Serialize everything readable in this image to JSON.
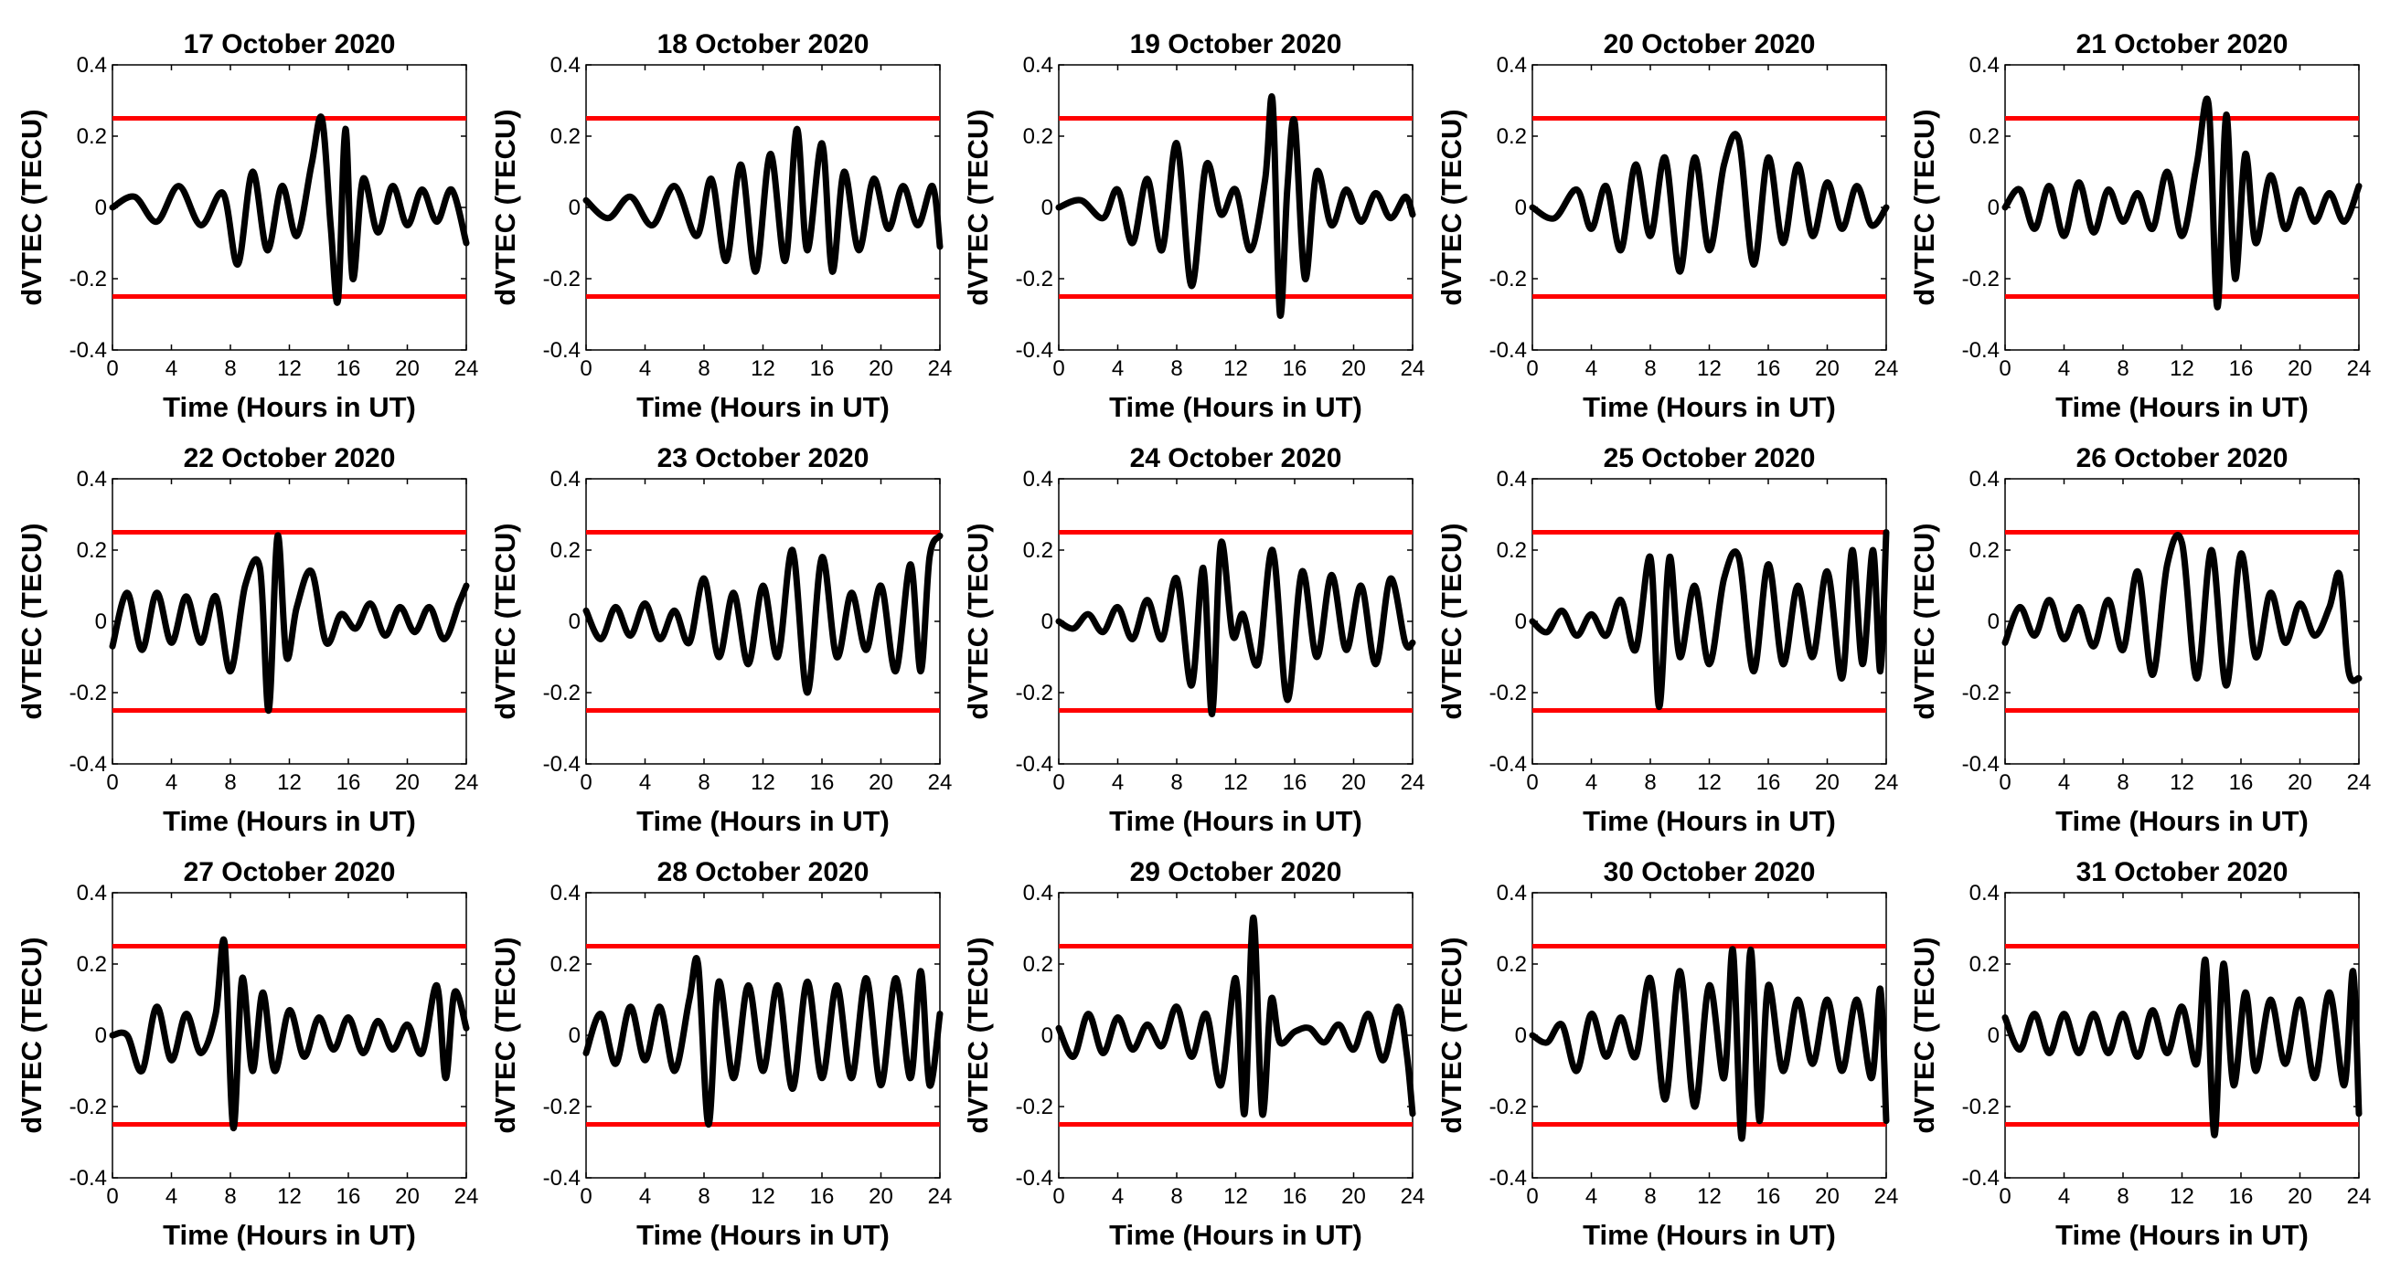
{
  "figure": {
    "xlabel": "Time (Hours in UT)",
    "ylabel": "dVTEC (TECU)",
    "colors": {
      "trace": "#000000",
      "threshold": "#ff0000",
      "axes": "#000000"
    }
  },
  "chart_data": [
    {
      "type": "line",
      "title": "17 October 2020",
      "xlim": [
        0,
        24
      ],
      "ylim": [
        -0.4,
        0.4
      ],
      "thresholds": [
        0.25,
        -0.25
      ],
      "xticks": [
        "0",
        "4",
        "8",
        "12",
        "16",
        "20",
        "24"
      ],
      "yticks": [
        "0.4",
        "0.2",
        "0",
        "-0.2",
        "-0.4"
      ],
      "x": [
        0,
        1.5,
        3,
        4.5,
        6,
        7.5,
        8.5,
        9.5,
        10.5,
        11.5,
        12.5,
        13.5,
        14.2,
        14.8,
        15.3,
        15.8,
        16.3,
        17,
        18,
        19,
        20,
        21,
        22,
        23,
        24
      ],
      "values": [
        0,
        0.03,
        -0.04,
        0.06,
        -0.05,
        0.04,
        -0.16,
        0.1,
        -0.12,
        0.06,
        -0.08,
        0.12,
        0.25,
        -0.05,
        -0.26,
        0.22,
        -0.2,
        0.08,
        -0.07,
        0.06,
        -0.05,
        0.05,
        -0.04,
        0.05,
        -0.1
      ]
    },
    {
      "type": "line",
      "title": "18 October 2020",
      "xlim": [
        0,
        24
      ],
      "ylim": [
        -0.4,
        0.4
      ],
      "thresholds": [
        0.25,
        -0.25
      ],
      "xticks": [
        "0",
        "4",
        "8",
        "12",
        "16",
        "20",
        "24"
      ],
      "yticks": [
        "0.4",
        "0.2",
        "0",
        "-0.2",
        "-0.4"
      ],
      "x": [
        0,
        1.5,
        3,
        4.5,
        6,
        7.5,
        8.5,
        9.5,
        10.5,
        11.5,
        12.5,
        13.5,
        14.3,
        15,
        16,
        16.7,
        17.5,
        18.5,
        19.5,
        20.5,
        21.5,
        22.5,
        23.5,
        24
      ],
      "values": [
        0.02,
        -0.03,
        0.03,
        -0.05,
        0.06,
        -0.08,
        0.08,
        -0.15,
        0.12,
        -0.18,
        0.15,
        -0.15,
        0.22,
        -0.12,
        0.18,
        -0.18,
        0.1,
        -0.12,
        0.08,
        -0.06,
        0.06,
        -0.05,
        0.06,
        -0.11
      ]
    },
    {
      "type": "line",
      "title": "19 October 2020",
      "xlim": [
        0,
        24
      ],
      "ylim": [
        -0.4,
        0.4
      ],
      "thresholds": [
        0.25,
        -0.25
      ],
      "xticks": [
        "0",
        "4",
        "8",
        "12",
        "16",
        "20",
        "24"
      ],
      "yticks": [
        "0.4",
        "0.2",
        "0",
        "-0.2",
        "-0.4"
      ],
      "x": [
        0,
        1.5,
        3,
        4,
        5,
        6,
        7,
        8,
        9,
        10,
        11,
        12,
        13,
        14,
        14.5,
        15,
        15.5,
        16,
        16.7,
        17.5,
        18.5,
        19.5,
        20.5,
        21.5,
        22.5,
        23.5,
        24
      ],
      "values": [
        0,
        0.02,
        -0.03,
        0.05,
        -0.1,
        0.08,
        -0.12,
        0.18,
        -0.22,
        0.12,
        -0.02,
        0.05,
        -0.12,
        0.08,
        0.3,
        -0.3,
        0.05,
        0.24,
        -0.2,
        0.1,
        -0.05,
        0.05,
        -0.04,
        0.04,
        -0.03,
        0.03,
        -0.02
      ]
    },
    {
      "type": "line",
      "title": "20 October 2020",
      "xlim": [
        0,
        24
      ],
      "ylim": [
        -0.4,
        0.4
      ],
      "thresholds": [
        0.25,
        -0.25
      ],
      "xticks": [
        "0",
        "4",
        "8",
        "12",
        "16",
        "20",
        "24"
      ],
      "yticks": [
        "0.4",
        "0.2",
        "0",
        "-0.2",
        "-0.4"
      ],
      "x": [
        0,
        1.5,
        3,
        4,
        5,
        6,
        7,
        8,
        9,
        10,
        11,
        12,
        13,
        14,
        15,
        16,
        17,
        18,
        19,
        20,
        21,
        22,
        23,
        24
      ],
      "values": [
        0,
        -0.03,
        0.05,
        -0.06,
        0.06,
        -0.12,
        0.12,
        -0.08,
        0.14,
        -0.18,
        0.14,
        -0.12,
        0.12,
        0.19,
        -0.16,
        0.14,
        -0.1,
        0.12,
        -0.08,
        0.07,
        -0.06,
        0.06,
        -0.05,
        0
      ]
    },
    {
      "type": "line",
      "title": "21 October 2020",
      "xlim": [
        0,
        24
      ],
      "ylim": [
        -0.4,
        0.4
      ],
      "thresholds": [
        0.25,
        -0.25
      ],
      "xticks": [
        "0",
        "4",
        "8",
        "12",
        "16",
        "20",
        "24"
      ],
      "yticks": [
        "0.4",
        "0.2",
        "0",
        "-0.2",
        "-0.4"
      ],
      "x": [
        0,
        1,
        2,
        3,
        4,
        5,
        6,
        7,
        8,
        9,
        10,
        11,
        12,
        13,
        13.8,
        14.4,
        15,
        15.6,
        16.3,
        17,
        18,
        19,
        20,
        21,
        22,
        23,
        24
      ],
      "values": [
        0,
        0.05,
        -0.06,
        0.06,
        -0.08,
        0.07,
        -0.07,
        0.05,
        -0.04,
        0.04,
        -0.06,
        0.1,
        -0.08,
        0.12,
        0.29,
        -0.28,
        0.26,
        -0.2,
        0.15,
        -0.1,
        0.09,
        -0.06,
        0.05,
        -0.04,
        0.04,
        -0.04,
        0.06
      ]
    },
    {
      "type": "line",
      "title": "22 October 2020",
      "xlim": [
        0,
        24
      ],
      "ylim": [
        -0.4,
        0.4
      ],
      "thresholds": [
        0.25,
        -0.25
      ],
      "xticks": [
        "0",
        "4",
        "8",
        "12",
        "16",
        "20",
        "24"
      ],
      "yticks": [
        "0.4",
        "0.2",
        "0",
        "-0.2",
        "-0.4"
      ],
      "x": [
        0,
        1,
        2,
        3,
        4,
        5,
        6,
        7,
        8,
        9,
        10,
        10.6,
        11.2,
        11.8,
        12.5,
        13.5,
        14.5,
        15.5,
        16.5,
        17.5,
        18.5,
        19.5,
        20.5,
        21.5,
        22.5,
        23.5,
        24
      ],
      "values": [
        -0.07,
        0.08,
        -0.08,
        0.08,
        -0.06,
        0.07,
        -0.06,
        0.07,
        -0.14,
        0.1,
        0.15,
        -0.25,
        0.24,
        -0.1,
        0.04,
        0.14,
        -0.06,
        0.02,
        -0.02,
        0.05,
        -0.04,
        0.04,
        -0.03,
        0.04,
        -0.05,
        0.05,
        0.1
      ]
    },
    {
      "type": "line",
      "title": "23 October 2020",
      "xlim": [
        0,
        24
      ],
      "ylim": [
        -0.4,
        0.4
      ],
      "thresholds": [
        0.25,
        -0.25
      ],
      "xticks": [
        "0",
        "4",
        "8",
        "12",
        "16",
        "20",
        "24"
      ],
      "yticks": [
        "0.4",
        "0.2",
        "0",
        "-0.2",
        "-0.4"
      ],
      "x": [
        0,
        1,
        2,
        3,
        4,
        5,
        6,
        7,
        8,
        9,
        10,
        11,
        12,
        13,
        14,
        15,
        16,
        17,
        18,
        19,
        20,
        21,
        22,
        22.7,
        23.3,
        24
      ],
      "values": [
        0.03,
        -0.05,
        0.04,
        -0.04,
        0.05,
        -0.05,
        0.03,
        -0.06,
        0.12,
        -0.1,
        0.08,
        -0.12,
        0.1,
        -0.1,
        0.2,
        -0.2,
        0.18,
        -0.1,
        0.08,
        -0.08,
        0.1,
        -0.14,
        0.16,
        -0.14,
        0.18,
        0.24
      ]
    },
    {
      "type": "line",
      "title": "24 October 2020",
      "xlim": [
        0,
        24
      ],
      "ylim": [
        -0.4,
        0.4
      ],
      "thresholds": [
        0.25,
        -0.25
      ],
      "xticks": [
        "0",
        "4",
        "8",
        "12",
        "16",
        "20",
        "24"
      ],
      "yticks": [
        "0.4",
        "0.2",
        "0",
        "-0.2",
        "-0.4"
      ],
      "x": [
        0,
        1,
        2,
        3,
        4,
        5,
        6,
        7,
        8,
        9,
        9.8,
        10.4,
        11,
        11.8,
        12.5,
        13.5,
        14.5,
        15.5,
        16.5,
        17.5,
        18.5,
        19.5,
        20.5,
        21.5,
        22.5,
        23.5,
        24
      ],
      "values": [
        0,
        -0.02,
        0.02,
        -0.03,
        0.04,
        -0.05,
        0.06,
        -0.05,
        0.12,
        -0.18,
        0.15,
        -0.26,
        0.22,
        -0.04,
        0.02,
        -0.12,
        0.2,
        -0.22,
        0.14,
        -0.1,
        0.13,
        -0.08,
        0.1,
        -0.12,
        0.12,
        -0.06,
        -0.06
      ]
    },
    {
      "type": "line",
      "title": "25 October 2020",
      "xlim": [
        0,
        24
      ],
      "ylim": [
        -0.4,
        0.4
      ],
      "thresholds": [
        0.25,
        -0.25
      ],
      "xticks": [
        "0",
        "4",
        "8",
        "12",
        "16",
        "20",
        "24"
      ],
      "yticks": [
        "0.4",
        "0.2",
        "0",
        "-0.2",
        "-0.4"
      ],
      "x": [
        0,
        1,
        2,
        3,
        4,
        5,
        6,
        7,
        8,
        8.6,
        9.3,
        10,
        11,
        12,
        13,
        14,
        15,
        16,
        17,
        18,
        19,
        20,
        21,
        21.7,
        22.4,
        23.1,
        23.6,
        24
      ],
      "values": [
        0,
        -0.03,
        0.03,
        -0.04,
        0.02,
        -0.04,
        0.06,
        -0.08,
        0.18,
        -0.24,
        0.18,
        -0.1,
        0.1,
        -0.12,
        0.12,
        0.18,
        -0.14,
        0.16,
        -0.12,
        0.1,
        -0.1,
        0.14,
        -0.16,
        0.2,
        -0.12,
        0.2,
        -0.14,
        0.25
      ]
    },
    {
      "type": "line",
      "title": "26 October 2020",
      "xlim": [
        0,
        24
      ],
      "ylim": [
        -0.4,
        0.4
      ],
      "thresholds": [
        0.25,
        -0.25
      ],
      "xticks": [
        "0",
        "4",
        "8",
        "12",
        "16",
        "20",
        "24"
      ],
      "yticks": [
        "0.4",
        "0.2",
        "0",
        "-0.2",
        "-0.4"
      ],
      "x": [
        0,
        1,
        2,
        3,
        4,
        5,
        6,
        7,
        8,
        9,
        10,
        11,
        12,
        13,
        14,
        15,
        16,
        17,
        18,
        19,
        20,
        21,
        22,
        22.7,
        23.3,
        24
      ],
      "values": [
        -0.06,
        0.04,
        -0.04,
        0.06,
        -0.05,
        0.04,
        -0.07,
        0.06,
        -0.08,
        0.14,
        -0.15,
        0.16,
        0.22,
        -0.16,
        0.2,
        -0.18,
        0.19,
        -0.1,
        0.08,
        -0.06,
        0.05,
        -0.04,
        0.04,
        0.13,
        -0.14,
        -0.16
      ]
    },
    {
      "type": "line",
      "title": "27 October 2020",
      "xlim": [
        0,
        24
      ],
      "ylim": [
        -0.4,
        0.4
      ],
      "thresholds": [
        0.25,
        -0.25
      ],
      "xticks": [
        "0",
        "4",
        "8",
        "12",
        "16",
        "20",
        "24"
      ],
      "yticks": [
        "0.4",
        "0.2",
        "0",
        "-0.2",
        "-0.4"
      ],
      "x": [
        0,
        1,
        2,
        3,
        4,
        5,
        6,
        7,
        7.6,
        8.2,
        8.8,
        9.5,
        10.2,
        11,
        12,
        13,
        14,
        15,
        16,
        17,
        18,
        19,
        20,
        21,
        22,
        22.6,
        23.2,
        24
      ],
      "values": [
        0,
        0,
        -0.1,
        0.08,
        -0.07,
        0.06,
        -0.05,
        0.06,
        0.26,
        -0.26,
        0.16,
        -0.1,
        0.12,
        -0.1,
        0.07,
        -0.06,
        0.05,
        -0.04,
        0.05,
        -0.05,
        0.04,
        -0.04,
        0.03,
        -0.05,
        0.14,
        -0.12,
        0.12,
        0.02
      ]
    },
    {
      "type": "line",
      "title": "28 October 2020",
      "xlim": [
        0,
        24
      ],
      "ylim": [
        -0.4,
        0.4
      ],
      "thresholds": [
        0.25,
        -0.25
      ],
      "xticks": [
        "0",
        "4",
        "8",
        "12",
        "16",
        "20",
        "24"
      ],
      "yticks": [
        "0.4",
        "0.2",
        "0",
        "-0.2",
        "-0.4"
      ],
      "x": [
        0,
        1,
        2,
        3,
        4,
        5,
        6,
        7,
        7.6,
        8.3,
        9,
        10,
        11,
        12,
        13,
        14,
        15,
        16,
        17,
        18,
        19,
        20,
        21,
        22,
        22.7,
        23.3,
        24
      ],
      "values": [
        -0.05,
        0.06,
        -0.08,
        0.08,
        -0.07,
        0.08,
        -0.1,
        0.1,
        0.2,
        -0.25,
        0.15,
        -0.12,
        0.14,
        -0.1,
        0.14,
        -0.15,
        0.15,
        -0.12,
        0.14,
        -0.12,
        0.16,
        -0.14,
        0.16,
        -0.12,
        0.18,
        -0.14,
        0.06
      ]
    },
    {
      "type": "line",
      "title": "29 October 2020",
      "xlim": [
        0,
        24
      ],
      "ylim": [
        -0.4,
        0.4
      ],
      "thresholds": [
        0.25,
        -0.25
      ],
      "xticks": [
        "0",
        "4",
        "8",
        "12",
        "16",
        "20",
        "24"
      ],
      "yticks": [
        "0.4",
        "0.2",
        "0",
        "-0.2",
        "-0.4"
      ],
      "x": [
        0,
        1,
        2,
        3,
        4,
        5,
        6,
        7,
        8,
        9,
        10,
        11,
        12,
        12.6,
        13.2,
        13.8,
        14.4,
        15,
        16,
        17,
        18,
        19,
        20,
        21,
        22,
        23,
        23.6,
        24
      ],
      "values": [
        0.02,
        -0.06,
        0.06,
        -0.05,
        0.05,
        -0.04,
        0.03,
        -0.03,
        0.08,
        -0.06,
        0.06,
        -0.14,
        0.16,
        -0.22,
        0.33,
        -0.22,
        0.1,
        -0.02,
        0.01,
        0.02,
        -0.02,
        0.03,
        -0.04,
        0.06,
        -0.07,
        0.08,
        -0.05,
        -0.22
      ]
    },
    {
      "type": "line",
      "title": "30 October 2020",
      "xlim": [
        0,
        24
      ],
      "ylim": [
        -0.4,
        0.4
      ],
      "thresholds": [
        0.25,
        -0.25
      ],
      "xticks": [
        "0",
        "4",
        "8",
        "12",
        "16",
        "20",
        "24"
      ],
      "yticks": [
        "0.4",
        "0.2",
        "0",
        "-0.2",
        "-0.4"
      ],
      "x": [
        0,
        1,
        2,
        3,
        4,
        5,
        6,
        7,
        8,
        9,
        10,
        11,
        12,
        13,
        13.6,
        14.2,
        14.8,
        15.4,
        16,
        17,
        18,
        19,
        20,
        21,
        22,
        23,
        23.6,
        24
      ],
      "values": [
        0,
        -0.02,
        0.03,
        -0.1,
        0.06,
        -0.06,
        0.05,
        -0.06,
        0.16,
        -0.18,
        0.18,
        -0.2,
        0.14,
        -0.12,
        0.24,
        -0.29,
        0.24,
        -0.24,
        0.14,
        -0.1,
        0.1,
        -0.08,
        0.1,
        -0.1,
        0.1,
        -0.12,
        0.13,
        -0.24
      ]
    },
    {
      "type": "line",
      "title": "31 October 2020",
      "xlim": [
        0,
        24
      ],
      "ylim": [
        -0.4,
        0.4
      ],
      "thresholds": [
        0.25,
        -0.25
      ],
      "xticks": [
        "0",
        "4",
        "8",
        "12",
        "16",
        "20",
        "24"
      ],
      "yticks": [
        "0.4",
        "0.2",
        "0",
        "-0.2",
        "-0.4"
      ],
      "x": [
        0,
        1,
        2,
        3,
        4,
        5,
        6,
        7,
        8,
        9,
        10,
        11,
        12,
        13,
        13.6,
        14.2,
        14.8,
        15.5,
        16.3,
        17,
        18,
        19,
        20,
        21,
        22,
        23,
        23.6,
        24
      ],
      "values": [
        0.05,
        -0.04,
        0.06,
        -0.05,
        0.06,
        -0.05,
        0.06,
        -0.05,
        0.06,
        -0.06,
        0.07,
        -0.05,
        0.08,
        -0.08,
        0.21,
        -0.28,
        0.2,
        -0.14,
        0.12,
        -0.1,
        0.1,
        -0.08,
        0.1,
        -0.12,
        0.12,
        -0.14,
        0.18,
        -0.22
      ]
    }
  ]
}
